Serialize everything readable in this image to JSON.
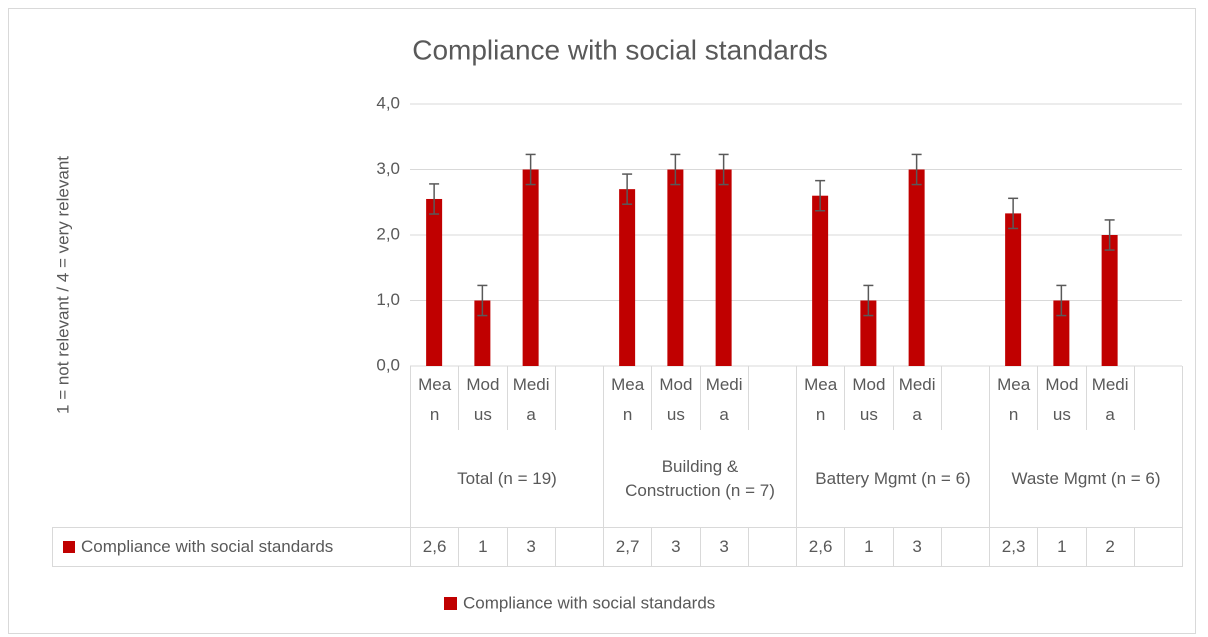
{
  "chart_data": {
    "type": "bar",
    "title": "Compliance with social standards",
    "y_label": "1 = not relevant / 4 = very relevant",
    "categories": [
      "Mean",
      "Modus",
      "Media",
      null,
      "Mean",
      "Modus",
      "Media",
      null,
      "Mean",
      "Modus",
      "Media",
      null,
      "Mean",
      "Modus",
      "Media",
      null
    ],
    "groups": [
      "Total (n = 19)",
      "Building & Construction (n = 7)",
      "Battery Mgmt (n = 6)",
      "Waste Mgmt (n = 6)"
    ],
    "series": [
      {
        "name": "Compliance with social standards",
        "color": "#c00000",
        "values": [
          2.55,
          1,
          3,
          null,
          2.7,
          3,
          3,
          null,
          2.6,
          1,
          3,
          null,
          2.33,
          1,
          2,
          null
        ],
        "value_labels": [
          "2,6",
          "1",
          "3",
          null,
          "2,7",
          "3",
          "3",
          null,
          "2,6",
          "1",
          "3",
          null,
          "2,3",
          "1",
          "2",
          null
        ],
        "errors": [
          0.23,
          0.23,
          0.23,
          null,
          0.23,
          0.23,
          0.23,
          null,
          0.23,
          0.23,
          0.23,
          null,
          0.23,
          0.23,
          0.23,
          null
        ]
      }
    ],
    "ylim": [
      0,
      4
    ],
    "yticks": [
      {
        "value": 0,
        "label": "0,0"
      },
      {
        "value": 1,
        "label": "1,0"
      },
      {
        "value": 2,
        "label": "2,0"
      },
      {
        "value": 3,
        "label": "3,0"
      },
      {
        "value": 4,
        "label": "4,0"
      }
    ],
    "grid": true,
    "legend": "bottom"
  }
}
